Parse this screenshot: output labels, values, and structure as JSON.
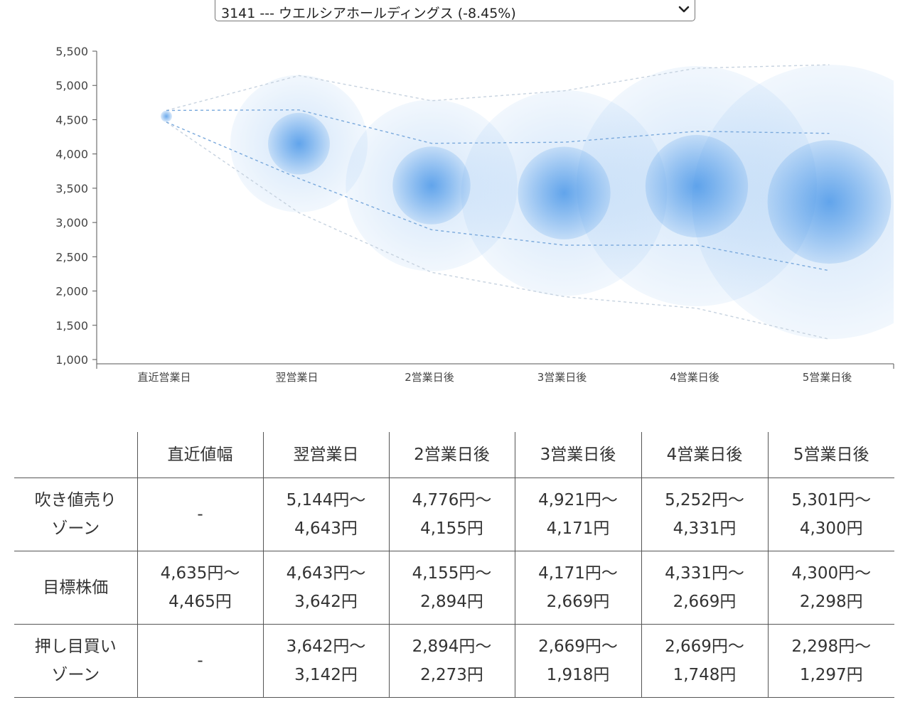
{
  "selector": {
    "selected": "3141 --- ウエルシアホールディングス (-8.45%)"
  },
  "colors": {
    "bubble": "#3b8ee6",
    "line": "#7aa9dc",
    "band": "#c6d2df",
    "axis": "#555555"
  },
  "chart_data": {
    "type": "bubble-band",
    "categories": [
      "直近営業日",
      "翌営業日",
      "2営業日後",
      "3営業日後",
      "4営業日後",
      "5営業日後"
    ],
    "y_ticks": [
      "5,500",
      "5,000",
      "4,500",
      "4,000",
      "3,500",
      "3,000",
      "2,500",
      "2,000",
      "1,500",
      "1,000"
    ],
    "ylim": [
      1000,
      5500
    ],
    "center": [
      4550,
      4150,
      3540,
      3430,
      3530,
      3300
    ],
    "upper_band": [
      4635,
      5144,
      4776,
      4921,
      5252,
      5301
    ],
    "mid_upper": [
      4635,
      4643,
      4155,
      4171,
      4331,
      4300
    ],
    "mid_lower": [
      4465,
      3642,
      2894,
      2669,
      2669,
      2298
    ],
    "lower_band": [
      4465,
      3142,
      2273,
      1918,
      1748,
      1297
    ]
  },
  "table": {
    "headers": [
      "",
      "直近値幅",
      "翌営業日",
      "2営業日後",
      "3営業日後",
      "4営業日後",
      "5営業日後"
    ],
    "rows": [
      {
        "label": [
          "吹き値売り",
          "ゾーン"
        ],
        "cells": [
          [
            "-"
          ],
          [
            "5,144円〜",
            "4,643円"
          ],
          [
            "4,776円〜",
            "4,155円"
          ],
          [
            "4,921円〜",
            "4,171円"
          ],
          [
            "5,252円〜",
            "4,331円"
          ],
          [
            "5,301円〜",
            "4,300円"
          ]
        ]
      },
      {
        "label": [
          "目標株価"
        ],
        "cells": [
          [
            "4,635円〜",
            "4,465円"
          ],
          [
            "4,643円〜",
            "3,642円"
          ],
          [
            "4,155円〜",
            "2,894円"
          ],
          [
            "4,171円〜",
            "2,669円"
          ],
          [
            "4,331円〜",
            "2,669円"
          ],
          [
            "4,300円〜",
            "2,298円"
          ]
        ]
      },
      {
        "label": [
          "押し目買い",
          "ゾーン"
        ],
        "cells": [
          [
            "-"
          ],
          [
            "3,642円〜",
            "3,142円"
          ],
          [
            "2,894円〜",
            "2,273円"
          ],
          [
            "2,669円〜",
            "1,918円"
          ],
          [
            "2,669円〜",
            "1,748円"
          ],
          [
            "2,298円〜",
            "1,297円"
          ]
        ]
      }
    ]
  }
}
